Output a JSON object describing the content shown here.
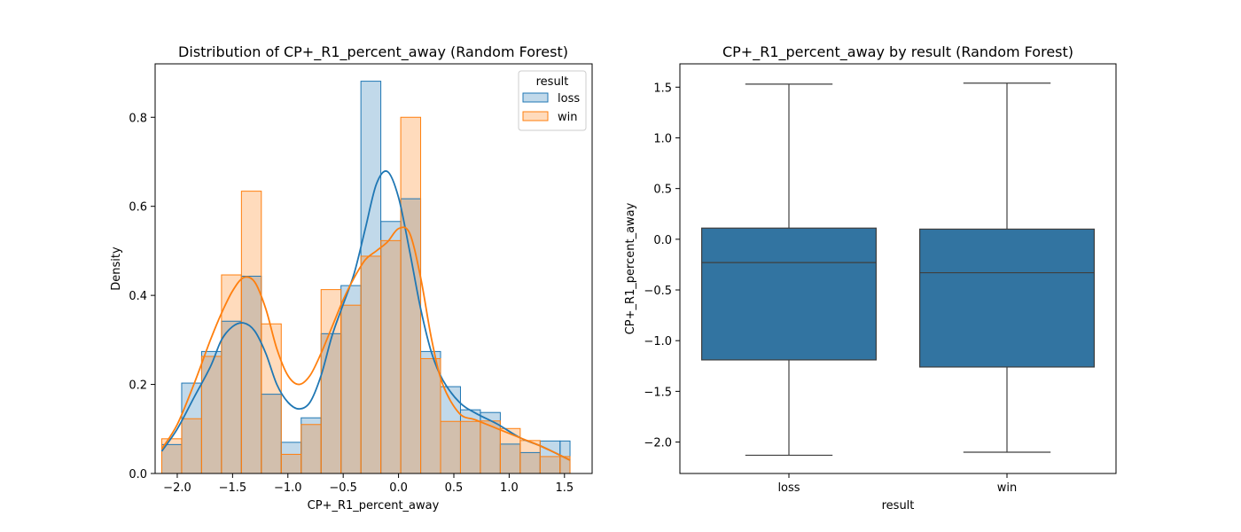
{
  "chart_data": [
    {
      "type": "histogram",
      "title": "Distribution of CP+_R1_percent_away (Random Forest)",
      "xlabel": "CP+_R1_percent_away",
      "ylabel": "Density",
      "xlim": [
        -2.2,
        1.75
      ],
      "ylim": [
        0,
        0.92
      ],
      "xticks": [
        -2.0,
        -1.5,
        -1.0,
        -0.5,
        0.0,
        0.5,
        1.0,
        1.5
      ],
      "xtick_labels": [
        "−2.0",
        "−1.5",
        "−1.0",
        "−0.5",
        "0.0",
        "0.5",
        "1.0",
        "1.5"
      ],
      "yticks": [
        0.0,
        0.2,
        0.4,
        0.6,
        0.8
      ],
      "ytick_labels": [
        "0.0",
        "0.2",
        "0.4",
        "0.6",
        "0.8"
      ],
      "grid": false,
      "legend": {
        "title": "result",
        "placement": "top-right"
      },
      "bin_edges": [
        -2.14,
        -1.96,
        -1.78,
        -1.6,
        -1.42,
        -1.24,
        -1.06,
        -0.88,
        -0.7,
        -0.52,
        -0.34,
        -0.16,
        0.02,
        0.2,
        0.38,
        0.56,
        0.74,
        0.92,
        1.1,
        1.28,
        1.46,
        1.55
      ],
      "series": [
        {
          "name": "loss",
          "color": "#1f77b4",
          "fill": "rgba(31,119,180,0.28)",
          "densities": [
            0.065,
            0.203,
            0.274,
            0.342,
            0.443,
            0.178,
            0.07,
            0.125,
            0.314,
            0.422,
            0.881,
            0.566,
            0.617,
            0.274,
            0.195,
            0.143,
            0.137,
            0.066,
            0.047,
            0.073,
            0.073
          ],
          "kde": [
            [
              -2.14,
              0.05
            ],
            [
              -2.0,
              0.1
            ],
            [
              -1.85,
              0.17
            ],
            [
              -1.7,
              0.24
            ],
            [
              -1.6,
              0.3
            ],
            [
              -1.5,
              0.33
            ],
            [
              -1.4,
              0.338
            ],
            [
              -1.3,
              0.32
            ],
            [
              -1.2,
              0.27
            ],
            [
              -1.1,
              0.2
            ],
            [
              -1.0,
              0.16
            ],
            [
              -0.9,
              0.145
            ],
            [
              -0.8,
              0.16
            ],
            [
              -0.7,
              0.22
            ],
            [
              -0.6,
              0.31
            ],
            [
              -0.5,
              0.38
            ],
            [
              -0.4,
              0.45
            ],
            [
              -0.3,
              0.55
            ],
            [
              -0.2,
              0.65
            ],
            [
              -0.1,
              0.678
            ],
            [
              0.0,
              0.62
            ],
            [
              0.1,
              0.5
            ],
            [
              0.2,
              0.37
            ],
            [
              0.3,
              0.27
            ],
            [
              0.4,
              0.21
            ],
            [
              0.55,
              0.16
            ],
            [
              0.7,
              0.135
            ],
            [
              0.9,
              0.11
            ],
            [
              1.1,
              0.08
            ],
            [
              1.3,
              0.06
            ],
            [
              1.55,
              0.03
            ]
          ]
        },
        {
          "name": "win",
          "color": "#ff7f0e",
          "fill": "rgba(255,127,14,0.28)",
          "densities": [
            0.078,
            0.123,
            0.263,
            0.446,
            0.634,
            0.336,
            0.043,
            0.11,
            0.413,
            0.378,
            0.488,
            0.523,
            0.8,
            0.258,
            0.117,
            0.117,
            0.118,
            0.101,
            0.074,
            0.038,
            0.038
          ],
          "kde": [
            [
              -2.14,
              0.055
            ],
            [
              -2.0,
              0.11
            ],
            [
              -1.85,
              0.2
            ],
            [
              -1.7,
              0.3
            ],
            [
              -1.6,
              0.36
            ],
            [
              -1.5,
              0.41
            ],
            [
              -1.4,
              0.44
            ],
            [
              -1.3,
              0.43
            ],
            [
              -1.2,
              0.37
            ],
            [
              -1.1,
              0.28
            ],
            [
              -1.0,
              0.22
            ],
            [
              -0.9,
              0.2
            ],
            [
              -0.8,
              0.22
            ],
            [
              -0.7,
              0.27
            ],
            [
              -0.6,
              0.33
            ],
            [
              -0.5,
              0.39
            ],
            [
              -0.4,
              0.44
            ],
            [
              -0.3,
              0.48
            ],
            [
              -0.2,
              0.5
            ],
            [
              -0.1,
              0.52
            ],
            [
              0.0,
              0.55
            ],
            [
              0.1,
              0.54
            ],
            [
              0.2,
              0.44
            ],
            [
              0.3,
              0.3
            ],
            [
              0.4,
              0.2
            ],
            [
              0.55,
              0.135
            ],
            [
              0.7,
              0.12
            ],
            [
              0.9,
              0.1
            ],
            [
              1.1,
              0.08
            ],
            [
              1.3,
              0.06
            ],
            [
              1.55,
              0.03
            ]
          ]
        }
      ]
    },
    {
      "type": "box",
      "title": "CP+_R1_percent_away by result (Random Forest)",
      "xlabel": "result",
      "ylabel": "CP+_R1_percent_away",
      "ylim": [
        -2.31,
        1.73
      ],
      "yticks": [
        -2.0,
        -1.5,
        -1.0,
        -0.5,
        0.0,
        0.5,
        1.0,
        1.5
      ],
      "ytick_labels": [
        "−2.0",
        "−1.5",
        "−1.0",
        "−0.5",
        "0.0",
        "0.5",
        "1.0",
        "1.5"
      ],
      "categories": [
        "loss",
        "win"
      ],
      "color": "#3274a1",
      "boxes": [
        {
          "name": "loss",
          "whisker_low": -2.13,
          "q1": -1.19,
          "median": -0.23,
          "q3": 0.11,
          "whisker_high": 1.53
        },
        {
          "name": "win",
          "whisker_low": -2.1,
          "q1": -1.26,
          "median": -0.33,
          "q3": 0.1,
          "whisker_high": 1.54
        }
      ]
    }
  ]
}
